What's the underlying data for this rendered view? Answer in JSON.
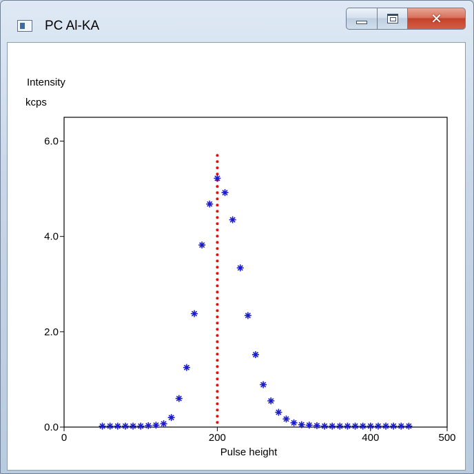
{
  "window": {
    "title": "PC Al-KA",
    "icon": "app-window-icon",
    "buttons": {
      "minimize": "minimize-icon",
      "maximize": "maximize-icon",
      "close_glyph": "✕"
    }
  },
  "chart_data": {
    "type": "scatter",
    "ylabel_line1": "Intensity",
    "ylabel_line2": "kcps",
    "xlabel": "Pulse height",
    "xlim": [
      0,
      500
    ],
    "ylim": [
      0,
      6.5
    ],
    "x_ticks": [
      0,
      200,
      400,
      500
    ],
    "y_ticks": [
      0.0,
      2.0,
      4.0,
      6.0
    ],
    "x_tick_labels": [
      "0",
      "200",
      "400",
      "500"
    ],
    "y_tick_labels": [
      "0.0",
      "2.0",
      "4.0",
      "6.0"
    ],
    "grid": false,
    "series": [
      {
        "marker": "asterisk",
        "color": "#1a1acc",
        "x": [
          50,
          60,
          70,
          80,
          90,
          100,
          110,
          120,
          130,
          140,
          150,
          160,
          170,
          180,
          190,
          200,
          210,
          220,
          230,
          240,
          250,
          260,
          270,
          280,
          290,
          300,
          310,
          320,
          330,
          340,
          350,
          360,
          370,
          380,
          390,
          400,
          410,
          420,
          430,
          440,
          450
        ],
        "y": [
          0.02,
          0.02,
          0.02,
          0.02,
          0.02,
          0.02,
          0.03,
          0.04,
          0.07,
          0.2,
          0.6,
          1.25,
          2.38,
          3.82,
          4.68,
          5.22,
          4.92,
          4.35,
          3.34,
          2.34,
          1.52,
          0.89,
          0.55,
          0.31,
          0.17,
          0.09,
          0.05,
          0.04,
          0.03,
          0.02,
          0.02,
          0.02,
          0.02,
          0.02,
          0.02,
          0.02,
          0.02,
          0.02,
          0.02,
          0.02,
          0.02
        ]
      }
    ],
    "reference_line": {
      "style": "dotted",
      "color": "#e01010",
      "x": 200,
      "y_top": 5.7
    }
  }
}
